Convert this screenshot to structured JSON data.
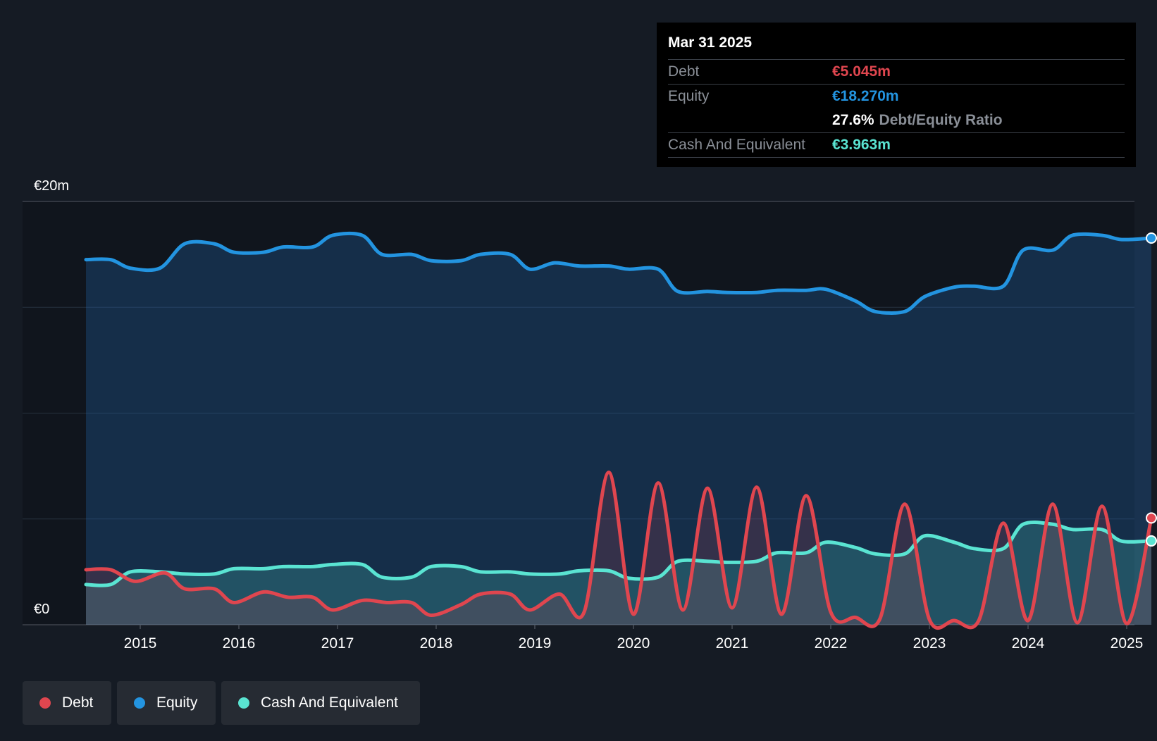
{
  "tooltip": {
    "date": "Mar 31 2025",
    "debt_label": "Debt",
    "debt_value": "€5.045m",
    "equity_label": "Equity",
    "equity_value": "€18.270m",
    "ratio_value": "27.6%",
    "ratio_label": "Debt/Equity Ratio",
    "cash_label": "Cash And Equivalent",
    "cash_value": "€3.963m"
  },
  "colors": {
    "debt": "#e0464f",
    "equity": "#2394e0",
    "cash": "#5ae4d2",
    "background": "#151b24"
  },
  "legend": [
    {
      "label": "Debt",
      "color": "#e0464f"
    },
    {
      "label": "Equity",
      "color": "#2394e0"
    },
    {
      "label": "Cash And Equivalent",
      "color": "#5ae4d2"
    }
  ],
  "chart_data": {
    "type": "area",
    "y_top_label": "€20m",
    "y_bottom_label": "€0",
    "ylim": [
      0,
      20
    ],
    "xlim": [
      2014.0,
      2025.25
    ],
    "x_ticks": [
      "2015",
      "2016",
      "2017",
      "2018",
      "2019",
      "2020",
      "2021",
      "2022",
      "2023",
      "2024",
      "2025"
    ],
    "grid": true,
    "series": [
      {
        "name": "Equity",
        "points": [
          [
            2014.45,
            17.25
          ],
          [
            2014.7,
            17.25
          ],
          [
            2014.9,
            16.85
          ],
          [
            2015.2,
            16.85
          ],
          [
            2015.45,
            18.0
          ],
          [
            2015.75,
            18.0
          ],
          [
            2015.95,
            17.6
          ],
          [
            2016.25,
            17.6
          ],
          [
            2016.45,
            17.85
          ],
          [
            2016.75,
            17.85
          ],
          [
            2016.95,
            18.4
          ],
          [
            2017.25,
            18.4
          ],
          [
            2017.45,
            17.5
          ],
          [
            2017.75,
            17.5
          ],
          [
            2017.95,
            17.2
          ],
          [
            2018.25,
            17.2
          ],
          [
            2018.45,
            17.5
          ],
          [
            2018.75,
            17.5
          ],
          [
            2018.95,
            16.8
          ],
          [
            2019.2,
            17.1
          ],
          [
            2019.45,
            16.95
          ],
          [
            2019.75,
            16.95
          ],
          [
            2019.95,
            16.8
          ],
          [
            2020.25,
            16.8
          ],
          [
            2020.45,
            15.75
          ],
          [
            2020.75,
            15.75
          ],
          [
            2020.95,
            15.7
          ],
          [
            2021.25,
            15.7
          ],
          [
            2021.45,
            15.8
          ],
          [
            2021.75,
            15.8
          ],
          [
            2021.95,
            15.85
          ],
          [
            2022.25,
            15.3
          ],
          [
            2022.45,
            14.8
          ],
          [
            2022.75,
            14.8
          ],
          [
            2022.95,
            15.5
          ],
          [
            2023.25,
            15.95
          ],
          [
            2023.45,
            16.0
          ],
          [
            2023.75,
            16.0
          ],
          [
            2023.95,
            17.7
          ],
          [
            2024.25,
            17.7
          ],
          [
            2024.45,
            18.4
          ],
          [
            2024.75,
            18.4
          ],
          [
            2024.95,
            18.2
          ],
          [
            2025.25,
            18.27
          ]
        ]
      },
      {
        "name": "Cash And Equivalent",
        "points": [
          [
            2014.45,
            1.9
          ],
          [
            2014.7,
            1.9
          ],
          [
            2014.9,
            2.5
          ],
          [
            2015.2,
            2.5
          ],
          [
            2015.45,
            2.4
          ],
          [
            2015.75,
            2.4
          ],
          [
            2015.95,
            2.65
          ],
          [
            2016.25,
            2.65
          ],
          [
            2016.45,
            2.75
          ],
          [
            2016.75,
            2.75
          ],
          [
            2016.95,
            2.85
          ],
          [
            2017.25,
            2.85
          ],
          [
            2017.45,
            2.25
          ],
          [
            2017.75,
            2.25
          ],
          [
            2017.95,
            2.75
          ],
          [
            2018.25,
            2.75
          ],
          [
            2018.45,
            2.5
          ],
          [
            2018.75,
            2.5
          ],
          [
            2018.95,
            2.4
          ],
          [
            2019.25,
            2.4
          ],
          [
            2019.45,
            2.55
          ],
          [
            2019.75,
            2.55
          ],
          [
            2019.95,
            2.2
          ],
          [
            2020.25,
            2.25
          ],
          [
            2020.45,
            3.0
          ],
          [
            2020.75,
            3.0
          ],
          [
            2020.95,
            2.95
          ],
          [
            2021.25,
            3.0
          ],
          [
            2021.45,
            3.4
          ],
          [
            2021.75,
            3.4
          ],
          [
            2021.95,
            3.9
          ],
          [
            2022.25,
            3.65
          ],
          [
            2022.45,
            3.35
          ],
          [
            2022.75,
            3.35
          ],
          [
            2022.95,
            4.2
          ],
          [
            2023.25,
            3.9
          ],
          [
            2023.45,
            3.6
          ],
          [
            2023.75,
            3.6
          ],
          [
            2023.95,
            4.75
          ],
          [
            2024.25,
            4.75
          ],
          [
            2024.45,
            4.5
          ],
          [
            2024.75,
            4.5
          ],
          [
            2024.95,
            3.95
          ],
          [
            2025.25,
            3.963
          ]
        ]
      },
      {
        "name": "Debt",
        "points": [
          [
            2014.45,
            2.6
          ],
          [
            2014.7,
            2.6
          ],
          [
            2014.95,
            2.05
          ],
          [
            2015.25,
            2.45
          ],
          [
            2015.45,
            1.7
          ],
          [
            2015.75,
            1.7
          ],
          [
            2015.95,
            1.05
          ],
          [
            2016.25,
            1.55
          ],
          [
            2016.5,
            1.3
          ],
          [
            2016.75,
            1.3
          ],
          [
            2016.95,
            0.7
          ],
          [
            2017.25,
            1.15
          ],
          [
            2017.5,
            1.05
          ],
          [
            2017.75,
            1.05
          ],
          [
            2017.95,
            0.45
          ],
          [
            2018.25,
            0.95
          ],
          [
            2018.45,
            1.45
          ],
          [
            2018.75,
            1.45
          ],
          [
            2018.95,
            0.7
          ],
          [
            2019.25,
            1.45
          ],
          [
            2019.5,
            0.6
          ],
          [
            2019.75,
            7.2
          ],
          [
            2020.0,
            0.5
          ],
          [
            2020.25,
            6.7
          ],
          [
            2020.5,
            0.7
          ],
          [
            2020.75,
            6.45
          ],
          [
            2021.0,
            0.8
          ],
          [
            2021.25,
            6.5
          ],
          [
            2021.5,
            0.5
          ],
          [
            2021.75,
            6.1
          ],
          [
            2022.0,
            0.6
          ],
          [
            2022.25,
            0.35
          ],
          [
            2022.5,
            0.3
          ],
          [
            2022.75,
            5.7
          ],
          [
            2023.0,
            0.25
          ],
          [
            2023.25,
            0.2
          ],
          [
            2023.5,
            0.2
          ],
          [
            2023.75,
            4.8
          ],
          [
            2024.0,
            0.2
          ],
          [
            2024.25,
            5.7
          ],
          [
            2024.5,
            0.1
          ],
          [
            2024.75,
            5.6
          ],
          [
            2025.0,
            0.05
          ],
          [
            2025.25,
            5.045
          ]
        ]
      }
    ]
  }
}
